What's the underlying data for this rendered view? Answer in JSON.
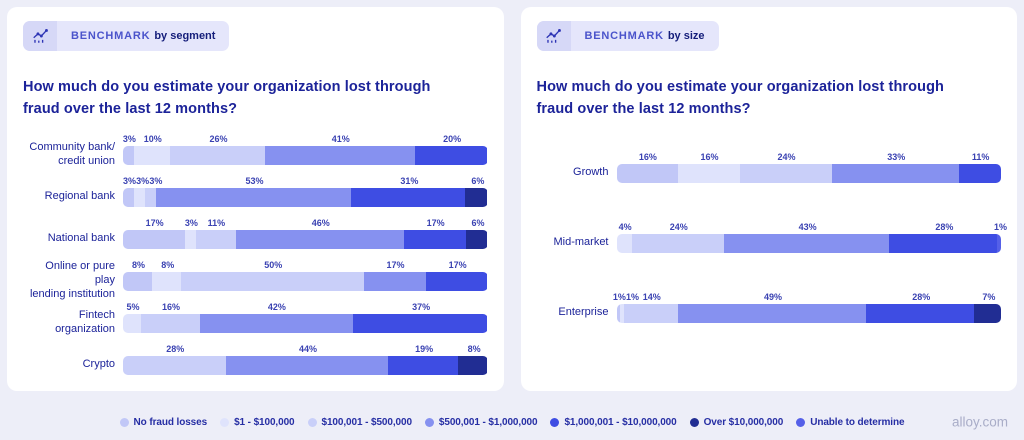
{
  "page": {
    "watermark": "alloy.com"
  },
  "chart_data": {
    "type": "bar",
    "variant": "horizontal-stacked",
    "unit": "%",
    "legend_position": "bottom",
    "legend": [
      {
        "label": "No fraud losses",
        "color": "#c1c7f7"
      },
      {
        "label": "$1 - $100,000",
        "color": "#dfe3fc"
      },
      {
        "label": "$100,001 - $500,000",
        "color": "#c9cff9"
      },
      {
        "label": "$500,001 - $1,000,000",
        "color": "#8691f0"
      },
      {
        "label": "$1,000,001 - $10,000,000",
        "color": "#3e4de3"
      },
      {
        "label": "Over $10,000,000",
        "color": "#212d93"
      },
      {
        "label": "Unable to determine",
        "color": "#5560e8"
      }
    ],
    "charts": [
      {
        "badge": {
          "icon": "trend-chart-icon",
          "prefix": "BENCHMARK",
          "suffix": "by segment"
        },
        "title": "How much do you estimate your organization lost through\nfraud over the last 12 months?",
        "rows": [
          {
            "label": "Community bank/\ncredit union",
            "segments": [
              {
                "legend": 0,
                "value": 3
              },
              {
                "legend": 1,
                "value": 10
              },
              {
                "legend": 2,
                "value": 26
              },
              {
                "legend": 3,
                "value": 41
              },
              {
                "legend": 4,
                "value": 20
              }
            ]
          },
          {
            "label": "Regional bank",
            "segments": [
              {
                "legend": 0,
                "value": 3
              },
              {
                "legend": 1,
                "value": 3
              },
              {
                "legend": 2,
                "value": 3
              },
              {
                "legend": 3,
                "value": 53
              },
              {
                "legend": 4,
                "value": 31
              },
              {
                "legend": 5,
                "value": 6
              }
            ]
          },
          {
            "label": "National bank",
            "segments": [
              {
                "legend": 0,
                "value": 17
              },
              {
                "legend": 1,
                "value": 3
              },
              {
                "legend": 2,
                "value": 11
              },
              {
                "legend": 3,
                "value": 46
              },
              {
                "legend": 4,
                "value": 17
              },
              {
                "legend": 5,
                "value": 6
              }
            ]
          },
          {
            "label": "Online or pure play\nlending institution",
            "segments": [
              {
                "legend": 0,
                "value": 8
              },
              {
                "legend": 1,
                "value": 8
              },
              {
                "legend": 2,
                "value": 50
              },
              {
                "legend": 3,
                "value": 17
              },
              {
                "legend": 4,
                "value": 17
              }
            ]
          },
          {
            "label": "Fintech\norganization",
            "segments": [
              {
                "legend": 1,
                "value": 5
              },
              {
                "legend": 2,
                "value": 16
              },
              {
                "legend": 3,
                "value": 42
              },
              {
                "legend": 4,
                "value": 37
              }
            ]
          },
          {
            "label": "Crypto",
            "segments": [
              {
                "legend": 2,
                "value": 28
              },
              {
                "legend": 3,
                "value": 44
              },
              {
                "legend": 4,
                "value": 19
              },
              {
                "legend": 5,
                "value": 8
              }
            ]
          }
        ]
      },
      {
        "badge": {
          "icon": "trend-chart-icon",
          "prefix": "BENCHMARK",
          "suffix": "by size"
        },
        "title": "How much do you estimate your organization lost through\nfraud over the last 12 months?",
        "rows": [
          {
            "label": "Growth",
            "segments": [
              {
                "legend": 0,
                "value": 16
              },
              {
                "legend": 1,
                "value": 16
              },
              {
                "legend": 2,
                "value": 24
              },
              {
                "legend": 3,
                "value": 33
              },
              {
                "legend": 4,
                "value": 11
              }
            ]
          },
          {
            "label": "Mid-market",
            "segments": [
              {
                "legend": 1,
                "value": 4
              },
              {
                "legend": 2,
                "value": 24
              },
              {
                "legend": 3,
                "value": 43
              },
              {
                "legend": 4,
                "value": 28
              },
              {
                "legend": 6,
                "value": 1
              }
            ]
          },
          {
            "label": "Enterprise",
            "segments": [
              {
                "legend": 0,
                "value": 1
              },
              {
                "legend": 1,
                "value": 1
              },
              {
                "legend": 2,
                "value": 14
              },
              {
                "legend": 3,
                "value": 49
              },
              {
                "legend": 4,
                "value": 28
              },
              {
                "legend": 5,
                "value": 7
              }
            ]
          }
        ]
      }
    ]
  }
}
